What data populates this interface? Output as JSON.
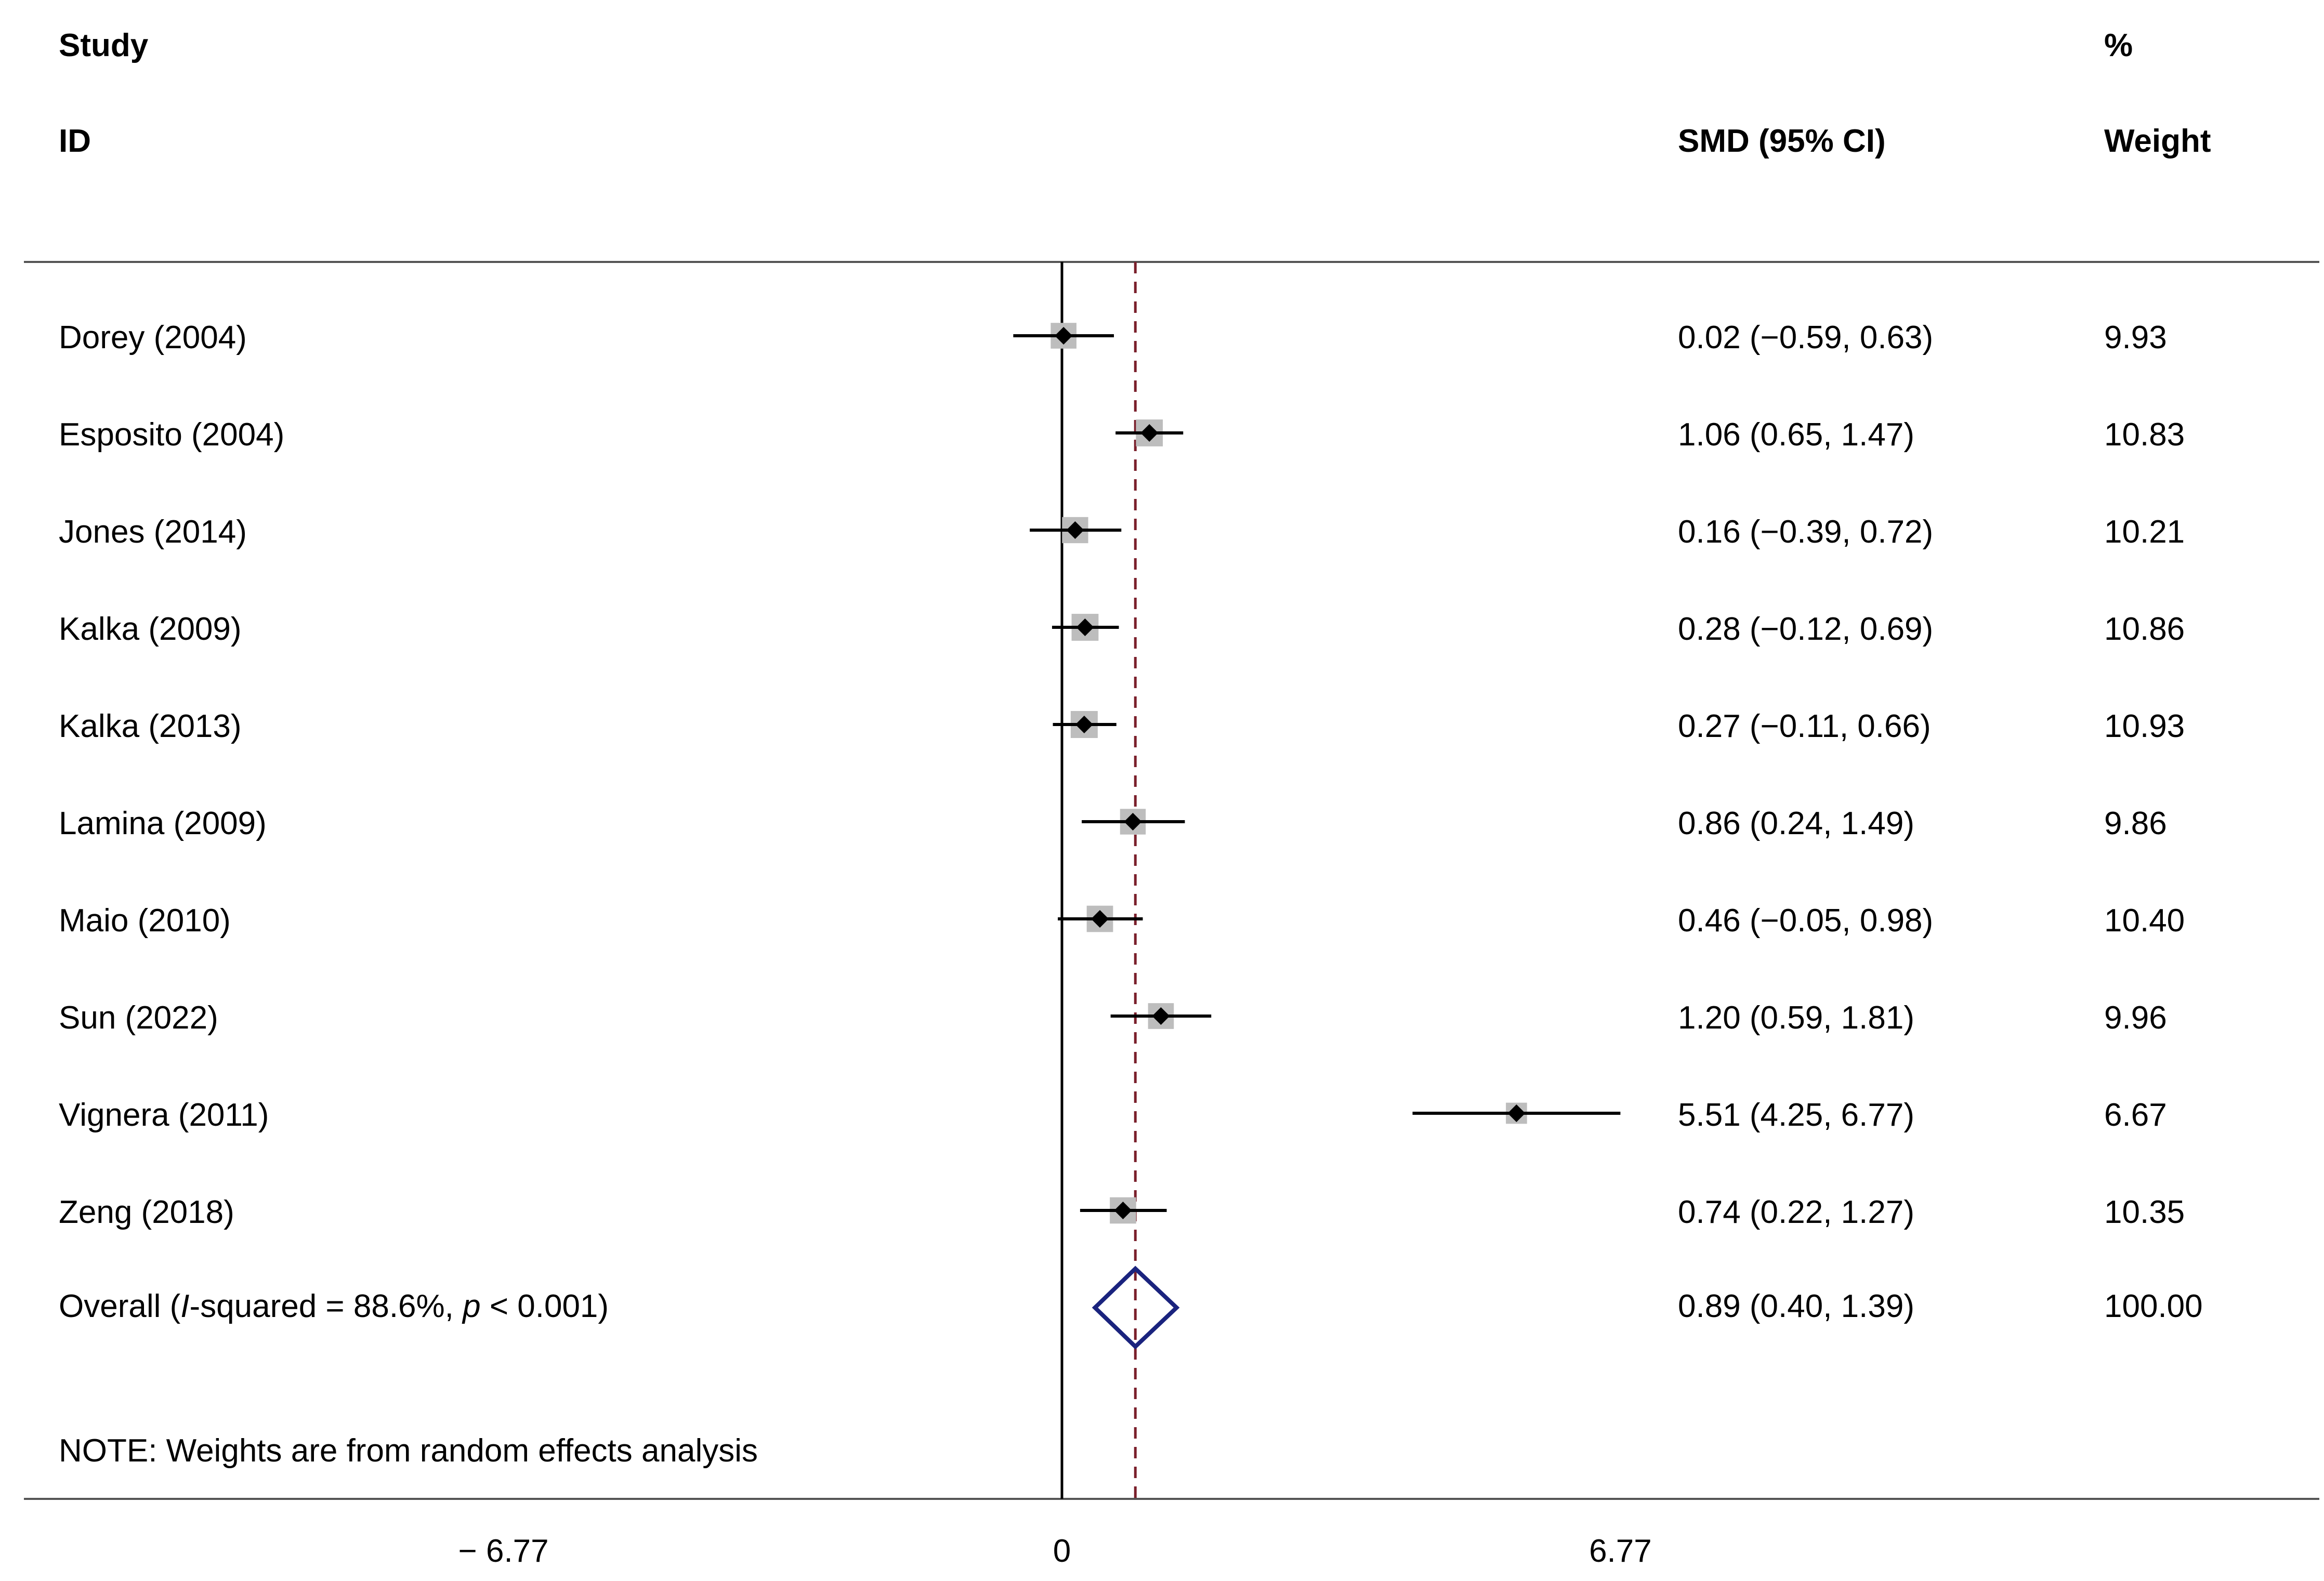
{
  "chart_data": {
    "type": "forest",
    "headers": {
      "study_line1": "Study",
      "study_line2": "ID",
      "effect": "SMD (95% CI)",
      "weight_line1": "%",
      "weight_line2": "Weight"
    },
    "null_line": 0,
    "xlim": [
      -6.77,
      6.77
    ],
    "x_ticks": [
      {
        "value": -6.77,
        "label": "− 6.77"
      },
      {
        "value": 0,
        "label": "0"
      },
      {
        "value": 6.77,
        "label": "6.77"
      }
    ],
    "studies": [
      {
        "id": "Dorey (2004)",
        "smd": 0.02,
        "lower": -0.59,
        "upper": 0.63,
        "ci_text": "0.02 (−0.59, 0.63)",
        "weight": 9.93,
        "weight_text": "9.93"
      },
      {
        "id": "Esposito (2004)",
        "smd": 1.06,
        "lower": 0.65,
        "upper": 1.47,
        "ci_text": "1.06 (0.65, 1.47)",
        "weight": 10.83,
        "weight_text": "10.83"
      },
      {
        "id": "Jones (2014)",
        "smd": 0.16,
        "lower": -0.39,
        "upper": 0.72,
        "ci_text": "0.16 (−0.39, 0.72)",
        "weight": 10.21,
        "weight_text": "10.21"
      },
      {
        "id": "Kalka (2009)",
        "smd": 0.28,
        "lower": -0.12,
        "upper": 0.69,
        "ci_text": "0.28 (−0.12, 0.69)",
        "weight": 10.86,
        "weight_text": "10.86"
      },
      {
        "id": "Kalka (2013)",
        "smd": 0.27,
        "lower": -0.11,
        "upper": 0.66,
        "ci_text": "0.27 (−0.11, 0.66)",
        "weight": 10.93,
        "weight_text": "10.93"
      },
      {
        "id": "Lamina (2009)",
        "smd": 0.86,
        "lower": 0.24,
        "upper": 1.49,
        "ci_text": "0.86 (0.24, 1.49)",
        "weight": 9.86,
        "weight_text": "9.86"
      },
      {
        "id": "Maio (2010)",
        "smd": 0.46,
        "lower": -0.05,
        "upper": 0.98,
        "ci_text": "0.46 (−0.05, 0.98)",
        "weight": 10.4,
        "weight_text": "10.40"
      },
      {
        "id": "Sun (2022)",
        "smd": 1.2,
        "lower": 0.59,
        "upper": 1.81,
        "ci_text": "1.20 (0.59, 1.81)",
        "weight": 9.96,
        "weight_text": "9.96"
      },
      {
        "id": "Vignera (2011)",
        "smd": 5.51,
        "lower": 4.25,
        "upper": 6.77,
        "ci_text": "5.51 (4.25, 6.77)",
        "weight": 6.67,
        "weight_text": "6.67"
      },
      {
        "id": "Zeng (2018)",
        "smd": 0.74,
        "lower": 0.22,
        "upper": 1.27,
        "ci_text": "0.74 (0.22, 1.27)",
        "weight": 10.35,
        "weight_text": "10.35"
      }
    ],
    "overall": {
      "label_prefix": "Overall  (",
      "label_i": "I",
      "label_mid": "-squared = 88.6%, ",
      "label_p": "p",
      "label_suffix": " < 0.001)",
      "smd": 0.89,
      "lower": 0.4,
      "upper": 1.39,
      "ci_text": "0.89 (0.40, 1.39)",
      "weight_text": "100.00"
    },
    "note": "NOTE: Weights are from random effects analysis",
    "colors": {
      "text": "#000000",
      "rule": "#555555",
      "null_line": "#000000",
      "overall_line": "#7a1f2b",
      "diamond": "#1a237e",
      "weight_box": "#bdbdbd",
      "point": "#000000",
      "ci_line": "#000000"
    }
  }
}
